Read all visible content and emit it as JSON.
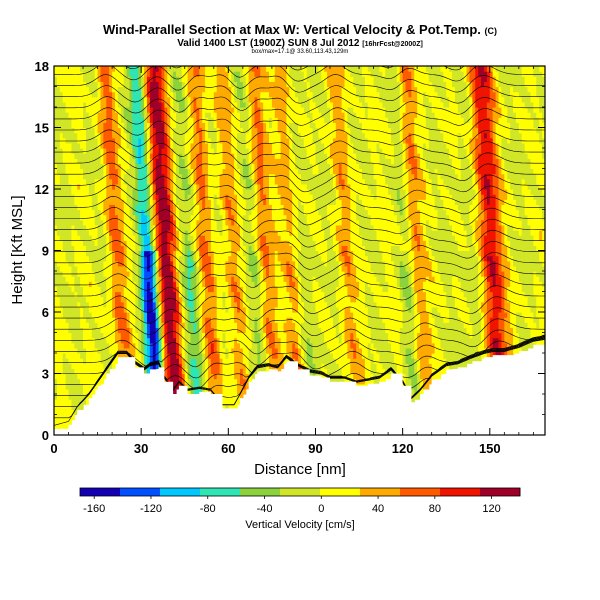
{
  "header": {
    "title": "Wind-Parallel Section at Max W: Vertical Velocity & Pot.Temp.",
    "title_mark": "(C)",
    "subtitle": "Valid 1400 LST (1900Z) SUN 8 Jul 2012",
    "subtitle_suffix": "[16hrFcst@2000Z]",
    "attribution": "box/max=17.1@ 33.60,113.43,129m"
  },
  "chart_data": {
    "type": "heatmap",
    "title": "Wind-Parallel Section at Max W: Vertical Velocity & Pot.Temp.",
    "xlabel": "Distance [nm]",
    "ylabel": "Height [Kft MSL]",
    "xlim": [
      0,
      169
    ],
    "ylim": [
      0,
      18
    ],
    "xticks": [
      0,
      30,
      60,
      90,
      120,
      150
    ],
    "yticks": [
      0,
      3,
      6,
      9,
      12,
      15,
      18
    ],
    "xtick_labels": [
      "0",
      "30",
      "60",
      "90",
      "120",
      "150"
    ],
    "ytick_labels": [
      "0",
      "3",
      "6",
      "9",
      "12",
      "15",
      "18"
    ],
    "colorbar": {
      "label": "Vertical Velocity [cm/s]",
      "min": -170,
      "max": 140,
      "ticks": [
        -160,
        -120,
        -80,
        -40,
        0,
        40,
        80,
        120
      ],
      "tick_labels": [
        "-160",
        "-120",
        "-80",
        "-40",
        "0",
        "40",
        "80",
        "120"
      ],
      "colors": [
        "#1400b4",
        "#0050ff",
        "#00c8ff",
        "#2ee6b4",
        "#8cd23c",
        "#d2e628",
        "#ffff00",
        "#ffaa00",
        "#ff5a00",
        "#f01400",
        "#a00028"
      ]
    },
    "terrain": {
      "x": [
        0,
        5,
        8,
        12,
        15,
        18,
        22,
        25,
        28,
        31,
        33,
        36,
        38,
        41,
        43,
        46,
        50,
        54,
        58,
        62,
        64,
        67,
        70,
        74,
        77,
        80,
        84,
        88,
        92,
        95,
        100,
        104,
        108,
        112,
        116,
        120,
        123,
        126,
        130,
        135,
        139,
        144,
        148,
        151,
        155,
        160,
        165,
        169
      ],
      "y": [
        0.3,
        0.5,
        1.2,
        1.8,
        2.4,
        3.0,
        3.8,
        3.8,
        3.3,
        3.0,
        3.2,
        3.3,
        2.6,
        2.0,
        2.4,
        2.0,
        2.1,
        2.0,
        1.3,
        1.3,
        1.8,
        2.6,
        3.1,
        3.2,
        3.1,
        3.6,
        3.2,
        2.9,
        2.8,
        2.6,
        2.6,
        2.4,
        2.5,
        2.6,
        3.0,
        2.4,
        1.6,
        2.0,
        2.7,
        3.2,
        3.3,
        3.6,
        3.8,
        3.9,
        3.9,
        4.1,
        4.4,
        4.5
      ]
    },
    "updrafts": [
      {
        "x": 24,
        "w": 3,
        "value": 60
      },
      {
        "x": 41,
        "w": 4,
        "value": 130
      },
      {
        "x": 55,
        "w": 3,
        "value": 60
      },
      {
        "x": 75,
        "w": 3,
        "value": 60
      },
      {
        "x": 84,
        "w": 3,
        "value": 50
      },
      {
        "x": 103,
        "w": 3,
        "value": 40
      },
      {
        "x": 127,
        "w": 3,
        "value": 60
      },
      {
        "x": 153,
        "w": 4,
        "value": 110
      },
      {
        "x": 64,
        "w": 3,
        "value": 40
      }
    ],
    "downdrafts": [
      {
        "x": 35,
        "w": 3,
        "value": -165
      },
      {
        "x": 49,
        "w": 3,
        "value": -60
      },
      {
        "x": 71,
        "w": 3,
        "value": -35
      },
      {
        "x": 89,
        "w": 3,
        "value": -30
      },
      {
        "x": 124,
        "w": 3,
        "value": -40
      },
      {
        "x": 146,
        "w": 3,
        "value": -30
      }
    ]
  }
}
